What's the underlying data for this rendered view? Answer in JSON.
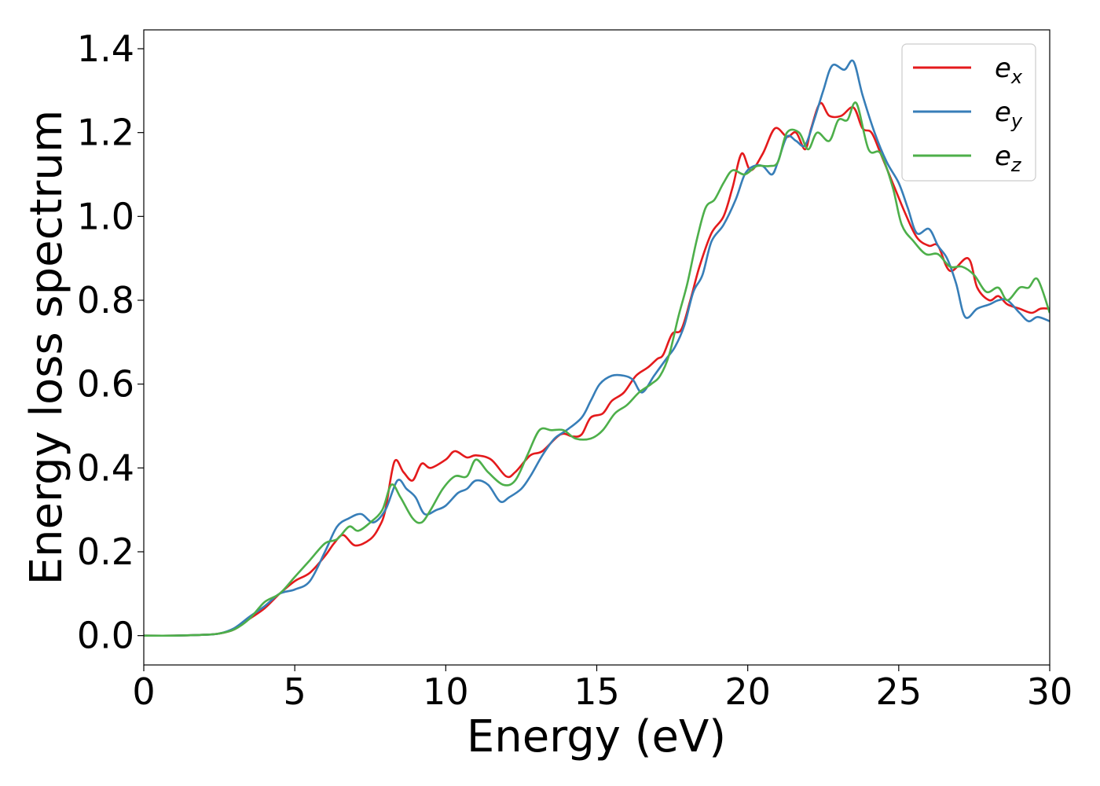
{
  "chart_data": {
    "type": "line",
    "title": "",
    "xlabel": "Energy (eV)",
    "ylabel": "Energy loss spectrum",
    "xlim": [
      0,
      30
    ],
    "ylim": [
      -0.07,
      1.445
    ],
    "xticks": [
      0,
      5,
      10,
      15,
      20,
      25,
      30
    ],
    "xtick_labels": [
      "0",
      "5",
      "10",
      "15",
      "20",
      "25",
      "30"
    ],
    "yticks": [
      0.0,
      0.2,
      0.4,
      0.6,
      0.8,
      1.0,
      1.2,
      1.4
    ],
    "ytick_labels": [
      "0.0",
      "0.2",
      "0.4",
      "0.6",
      "0.8",
      "1.0",
      "1.2",
      "1.4"
    ],
    "grid": false,
    "legend_position": "top-right",
    "series": [
      {
        "name": "e",
        "subscript": "x",
        "color": "#e41a1c",
        "points": [
          [
            0,
            0.0
          ],
          [
            1,
            0.0
          ],
          [
            2,
            0.002
          ],
          [
            2.5,
            0.005
          ],
          [
            3,
            0.015
          ],
          [
            3.5,
            0.04
          ],
          [
            4,
            0.065
          ],
          [
            4.5,
            0.1
          ],
          [
            5,
            0.13
          ],
          [
            5.5,
            0.15
          ],
          [
            6,
            0.19
          ],
          [
            6.3,
            0.22
          ],
          [
            6.6,
            0.24
          ],
          [
            7,
            0.215
          ],
          [
            7.5,
            0.23
          ],
          [
            7.8,
            0.26
          ],
          [
            8,
            0.3
          ],
          [
            8.3,
            0.415
          ],
          [
            8.6,
            0.39
          ],
          [
            8.9,
            0.37
          ],
          [
            9.2,
            0.41
          ],
          [
            9.5,
            0.4
          ],
          [
            10,
            0.42
          ],
          [
            10.3,
            0.44
          ],
          [
            10.7,
            0.425
          ],
          [
            11,
            0.43
          ],
          [
            11.5,
            0.42
          ],
          [
            12,
            0.38
          ],
          [
            12.3,
            0.39
          ],
          [
            12.8,
            0.43
          ],
          [
            13.2,
            0.44
          ],
          [
            13.8,
            0.48
          ],
          [
            14.2,
            0.475
          ],
          [
            14.5,
            0.48
          ],
          [
            14.8,
            0.52
          ],
          [
            15.2,
            0.53
          ],
          [
            15.5,
            0.56
          ],
          [
            15.9,
            0.58
          ],
          [
            16.3,
            0.62
          ],
          [
            16.7,
            0.64
          ],
          [
            17,
            0.66
          ],
          [
            17.2,
            0.67
          ],
          [
            17.5,
            0.72
          ],
          [
            17.8,
            0.73
          ],
          [
            18.1,
            0.8
          ],
          [
            18.4,
            0.88
          ],
          [
            18.8,
            0.96
          ],
          [
            19.2,
            1.0
          ],
          [
            19.5,
            1.07
          ],
          [
            19.8,
            1.15
          ],
          [
            20.1,
            1.11
          ],
          [
            20.5,
            1.15
          ],
          [
            20.9,
            1.21
          ],
          [
            21.3,
            1.19
          ],
          [
            21.6,
            1.2
          ],
          [
            21.9,
            1.16
          ],
          [
            22.1,
            1.21
          ],
          [
            22.4,
            1.27
          ],
          [
            22.7,
            1.24
          ],
          [
            23.1,
            1.24
          ],
          [
            23.5,
            1.26
          ],
          [
            23.8,
            1.21
          ],
          [
            24.1,
            1.2
          ],
          [
            24.4,
            1.15
          ],
          [
            24.8,
            1.08
          ],
          [
            25.2,
            1.01
          ],
          [
            25.6,
            0.95
          ],
          [
            26,
            0.93
          ],
          [
            26.3,
            0.93
          ],
          [
            26.7,
            0.87
          ],
          [
            27.3,
            0.9
          ],
          [
            27.6,
            0.83
          ],
          [
            28,
            0.8
          ],
          [
            28.3,
            0.81
          ],
          [
            28.6,
            0.79
          ],
          [
            29,
            0.78
          ],
          [
            29.4,
            0.77
          ],
          [
            29.7,
            0.78
          ],
          [
            30,
            0.78
          ]
        ]
      },
      {
        "name": "e",
        "subscript": "y",
        "color": "#377eb8",
        "points": [
          [
            0,
            0.0
          ],
          [
            1,
            0.0
          ],
          [
            2,
            0.002
          ],
          [
            2.5,
            0.005
          ],
          [
            3,
            0.018
          ],
          [
            3.5,
            0.045
          ],
          [
            4,
            0.07
          ],
          [
            4.5,
            0.1
          ],
          [
            5,
            0.11
          ],
          [
            5.5,
            0.13
          ],
          [
            6,
            0.2
          ],
          [
            6.4,
            0.26
          ],
          [
            6.8,
            0.28
          ],
          [
            7.2,
            0.29
          ],
          [
            7.6,
            0.27
          ],
          [
            8,
            0.3
          ],
          [
            8.4,
            0.37
          ],
          [
            8.7,
            0.35
          ],
          [
            9,
            0.33
          ],
          [
            9.3,
            0.29
          ],
          [
            9.7,
            0.3
          ],
          [
            10,
            0.31
          ],
          [
            10.4,
            0.34
          ],
          [
            10.7,
            0.35
          ],
          [
            11,
            0.37
          ],
          [
            11.4,
            0.36
          ],
          [
            11.8,
            0.32
          ],
          [
            12.1,
            0.33
          ],
          [
            12.5,
            0.35
          ],
          [
            12.8,
            0.38
          ],
          [
            13.2,
            0.43
          ],
          [
            13.6,
            0.47
          ],
          [
            14,
            0.49
          ],
          [
            14.5,
            0.52
          ],
          [
            14.8,
            0.56
          ],
          [
            15.1,
            0.6
          ],
          [
            15.5,
            0.62
          ],
          [
            15.9,
            0.62
          ],
          [
            16.2,
            0.61
          ],
          [
            16.5,
            0.58
          ],
          [
            16.9,
            0.62
          ],
          [
            17.3,
            0.66
          ],
          [
            17.6,
            0.69
          ],
          [
            17.9,
            0.74
          ],
          [
            18.2,
            0.82
          ],
          [
            18.5,
            0.86
          ],
          [
            18.8,
            0.94
          ],
          [
            19.2,
            0.98
          ],
          [
            19.6,
            1.04
          ],
          [
            19.9,
            1.1
          ],
          [
            20.2,
            1.12
          ],
          [
            20.5,
            1.12
          ],
          [
            20.8,
            1.1
          ],
          [
            21,
            1.13
          ],
          [
            21.3,
            1.19
          ],
          [
            21.6,
            1.18
          ],
          [
            21.9,
            1.17
          ],
          [
            22.2,
            1.23
          ],
          [
            22.5,
            1.3
          ],
          [
            22.8,
            1.36
          ],
          [
            23.2,
            1.35
          ],
          [
            23.5,
            1.37
          ],
          [
            23.8,
            1.29
          ],
          [
            24.2,
            1.2
          ],
          [
            24.6,
            1.13
          ],
          [
            25,
            1.08
          ],
          [
            25.3,
            1.02
          ],
          [
            25.6,
            0.96
          ],
          [
            26,
            0.97
          ],
          [
            26.3,
            0.93
          ],
          [
            26.6,
            0.9
          ],
          [
            26.9,
            0.84
          ],
          [
            27.2,
            0.76
          ],
          [
            27.6,
            0.78
          ],
          [
            28,
            0.79
          ],
          [
            28.3,
            0.8
          ],
          [
            28.6,
            0.8
          ],
          [
            29,
            0.77
          ],
          [
            29.3,
            0.75
          ],
          [
            29.6,
            0.76
          ],
          [
            30,
            0.75
          ]
        ]
      },
      {
        "name": "e",
        "subscript": "z",
        "color": "#4daf4a",
        "points": [
          [
            0,
            0.0
          ],
          [
            1,
            0.0
          ],
          [
            2,
            0.002
          ],
          [
            2.5,
            0.005
          ],
          [
            3,
            0.015
          ],
          [
            3.5,
            0.04
          ],
          [
            4,
            0.08
          ],
          [
            4.5,
            0.1
          ],
          [
            5,
            0.14
          ],
          [
            5.5,
            0.18
          ],
          [
            6,
            0.22
          ],
          [
            6.4,
            0.23
          ],
          [
            6.8,
            0.26
          ],
          [
            7.1,
            0.25
          ],
          [
            7.5,
            0.27
          ],
          [
            7.9,
            0.3
          ],
          [
            8.2,
            0.36
          ],
          [
            8.5,
            0.33
          ],
          [
            8.9,
            0.28
          ],
          [
            9.2,
            0.27
          ],
          [
            9.5,
            0.3
          ],
          [
            9.9,
            0.35
          ],
          [
            10.3,
            0.38
          ],
          [
            10.7,
            0.38
          ],
          [
            11,
            0.42
          ],
          [
            11.4,
            0.39
          ],
          [
            11.9,
            0.36
          ],
          [
            12.3,
            0.37
          ],
          [
            12.7,
            0.43
          ],
          [
            13.1,
            0.49
          ],
          [
            13.5,
            0.49
          ],
          [
            13.9,
            0.49
          ],
          [
            14.3,
            0.47
          ],
          [
            14.8,
            0.47
          ],
          [
            15.2,
            0.49
          ],
          [
            15.6,
            0.53
          ],
          [
            16,
            0.55
          ],
          [
            16.4,
            0.58
          ],
          [
            16.8,
            0.6
          ],
          [
            17.1,
            0.62
          ],
          [
            17.4,
            0.67
          ],
          [
            17.7,
            0.76
          ],
          [
            18,
            0.84
          ],
          [
            18.3,
            0.94
          ],
          [
            18.6,
            1.02
          ],
          [
            18.9,
            1.04
          ],
          [
            19.2,
            1.08
          ],
          [
            19.5,
            1.11
          ],
          [
            19.9,
            1.1
          ],
          [
            20.3,
            1.12
          ],
          [
            20.7,
            1.12
          ],
          [
            21,
            1.13
          ],
          [
            21.3,
            1.2
          ],
          [
            21.7,
            1.2
          ],
          [
            22,
            1.16
          ],
          [
            22.3,
            1.2
          ],
          [
            22.7,
            1.18
          ],
          [
            23,
            1.23
          ],
          [
            23.3,
            1.23
          ],
          [
            23.6,
            1.27
          ],
          [
            24,
            1.16
          ],
          [
            24.4,
            1.15
          ],
          [
            24.8,
            1.07
          ],
          [
            25.1,
            0.98
          ],
          [
            25.5,
            0.94
          ],
          [
            25.9,
            0.91
          ],
          [
            26.3,
            0.91
          ],
          [
            26.7,
            0.88
          ],
          [
            27.1,
            0.88
          ],
          [
            27.5,
            0.86
          ],
          [
            27.9,
            0.82
          ],
          [
            28.3,
            0.83
          ],
          [
            28.6,
            0.8
          ],
          [
            29,
            0.83
          ],
          [
            29.3,
            0.83
          ],
          [
            29.6,
            0.85
          ],
          [
            30,
            0.77
          ]
        ]
      }
    ]
  }
}
